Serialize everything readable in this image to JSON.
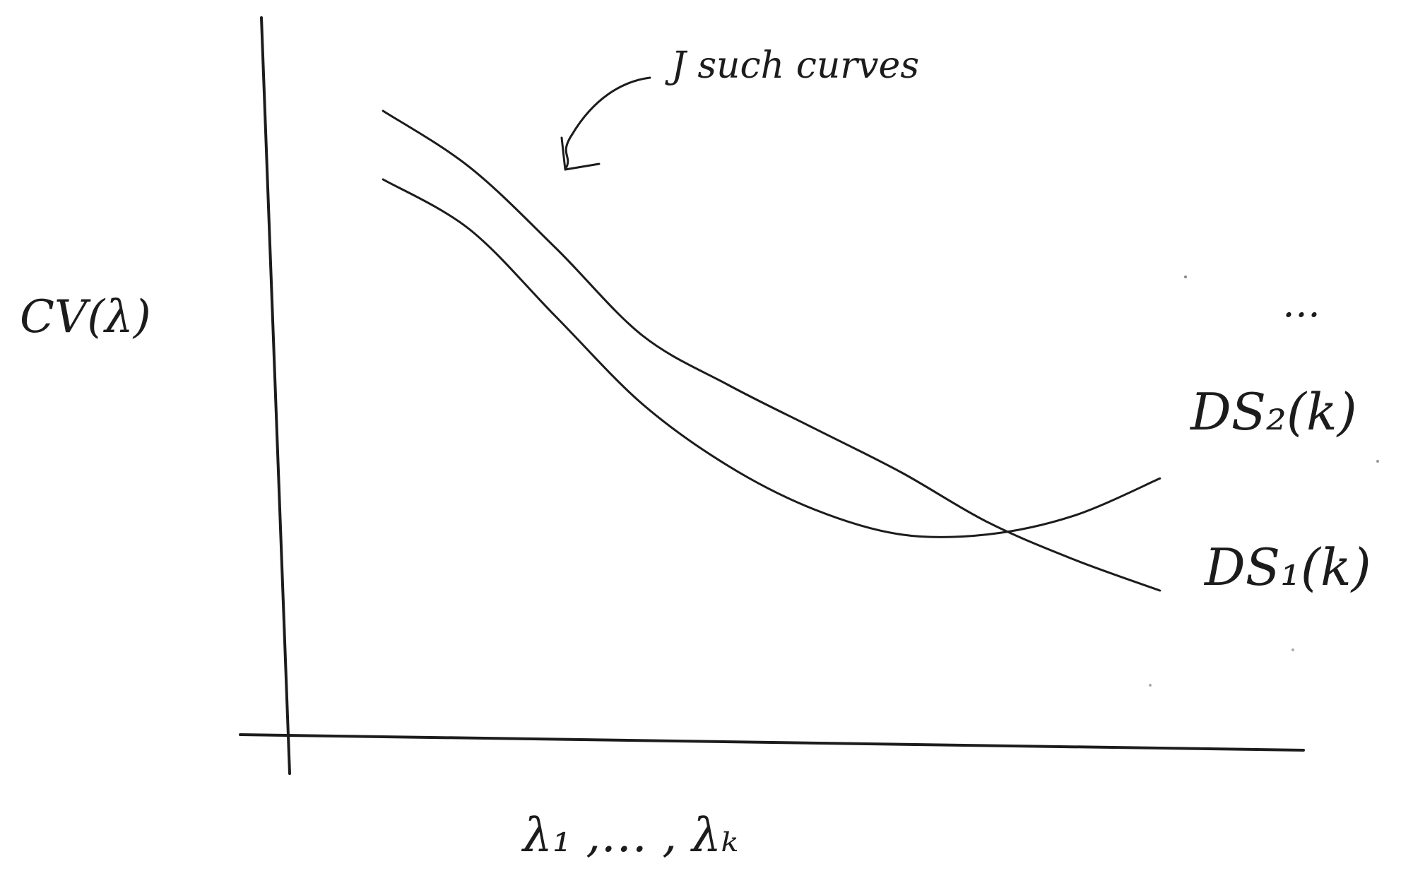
{
  "chart_data": {
    "type": "line",
    "title": "",
    "ylabel": "CV(λ)",
    "xlabel": "λ₁ ,… , λₖ",
    "grid": false,
    "x_ticks": false,
    "y_ticks": false,
    "annotation": "J such curves",
    "ellipsis_label": "…",
    "series": [
      {
        "name": "DS₂(k)",
        "x": [
          1,
          2,
          3,
          4,
          5,
          6,
          7,
          8,
          9,
          10
        ],
        "y": [
          8.8,
          8.0,
          6.6,
          5.2,
          4.2,
          3.5,
          3.1,
          3.1,
          3.4,
          4.0
        ]
      },
      {
        "name": "DS₁(k)",
        "x": [
          1,
          2,
          3,
          4,
          5,
          6,
          7,
          8,
          9,
          10
        ],
        "y": [
          9.9,
          9.0,
          7.7,
          6.3,
          5.5,
          4.8,
          4.1,
          3.3,
          2.7,
          2.2
        ]
      }
    ],
    "xlim": [
      0,
      11
    ],
    "ylim": [
      0,
      11
    ]
  }
}
